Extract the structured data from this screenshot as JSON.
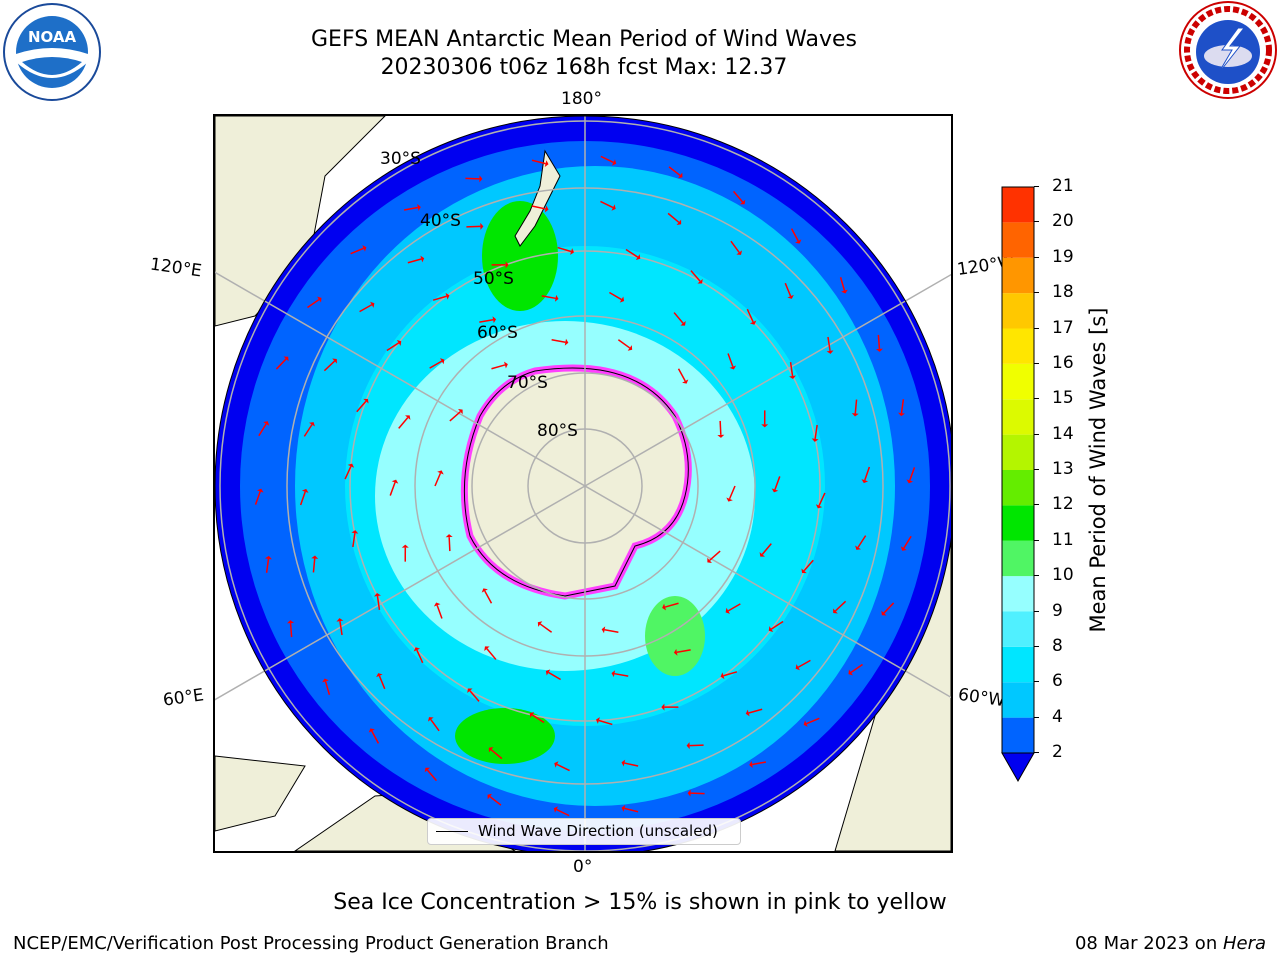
{
  "title_line1": "GEFS MEAN Antarctic Mean Period of Wind Waves",
  "title_line2": "20230306 t06z 168h fcst   Max: 12.37",
  "chart_data": {
    "type": "heatmap",
    "projection": "south-polar-stereographic",
    "max_value": 12.37,
    "colorbar": {
      "label": "Mean Period of Wind Waves [s]",
      "ticks": [
        "2",
        "4",
        "6",
        "8",
        "9",
        "10",
        "11",
        "12",
        "13",
        "14",
        "15",
        "16",
        "17",
        "18",
        "19",
        "20",
        "21"
      ],
      "levels": [
        2,
        4,
        6,
        8,
        9,
        10,
        11,
        12,
        13,
        14,
        15,
        16,
        17,
        18,
        19,
        20,
        21
      ],
      "colors": [
        "#0064ff",
        "#00c8ff",
        "#00e6ff",
        "#50f0ff",
        "#96ffff",
        "#50f564",
        "#00e600",
        "#64ed00",
        "#b4f500",
        "#dcfa00",
        "#f0ff00",
        "#ffe600",
        "#ffc800",
        "#ff9600",
        "#ff6400",
        "#ff3200",
        "#ff0000"
      ],
      "extend_low_color": "#0000f0"
    },
    "lon_labels": {
      "top": "180°",
      "bottom": "0°",
      "upper_left": "120°E",
      "upper_right": "120°W",
      "lower_left": "60°E",
      "lower_right": "60°W"
    },
    "lat_labels": [
      "30°S",
      "40°S",
      "50°S",
      "60°S",
      "70°S",
      "80°S"
    ],
    "legend": "Wind Wave Direction (unscaled)",
    "note": "Sea Ice Concentration > 15% is shown in pink to yellow"
  },
  "footer": {
    "left": "NCEP/EMC/Verification Post Processing Product Generation Branch",
    "right_prefix": "08 Mar 2023 on ",
    "right_system": "Hera"
  },
  "logos": {
    "left": "noaa-logo",
    "left_text": "NOAA",
    "right": "nws-logo",
    "right_text": "NATIONAL WEATHER SERVICE"
  },
  "colors": {
    "land": "#efefd9",
    "arrow": "#ff0000",
    "grid": "#b0b0b0",
    "sea_ice": "#ff40ff"
  }
}
